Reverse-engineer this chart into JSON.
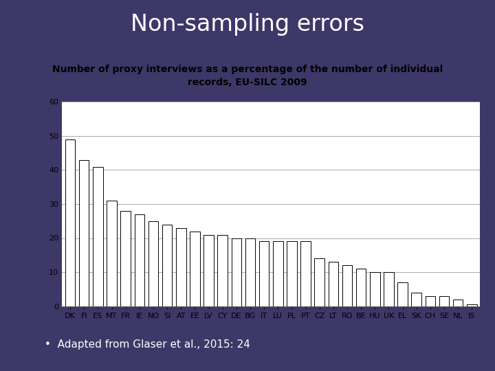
{
  "title": "Non-sampling errors",
  "subtitle": "Number of proxy interviews as a percentage of the number of individual\nrecords, EU-SILC 2009",
  "categories": [
    "DK",
    "FI",
    "ES",
    "MT",
    "FR",
    "IE",
    "NO",
    "SI",
    "AT",
    "EE",
    "LV",
    "CY",
    "DE",
    "BG",
    "IT",
    "LU",
    "PL",
    "PT",
    "CZ",
    "LT",
    "RO",
    "BE",
    "HU",
    "UK",
    "EL",
    "SK",
    "CH",
    "SE",
    "NL",
    "IS"
  ],
  "values": [
    49,
    43,
    41,
    31,
    28,
    27,
    25,
    24,
    23,
    22,
    21,
    21,
    20,
    20,
    19,
    19,
    19,
    19,
    14,
    13,
    12,
    11,
    10,
    10,
    7,
    4,
    3,
    3,
    2,
    0.5
  ],
  "bar_color": "#ffffff",
  "bar_edgecolor": "#000000",
  "bg_color": "#3d3868",
  "title_text_color": "#ffffff",
  "subtitle_text_color": "#000000",
  "grid_color": "#aaaaaa",
  "ylim": [
    0,
    60
  ],
  "yticks": [
    0,
    10,
    20,
    30,
    40,
    50,
    60
  ],
  "chart_bg_color": "#ffffff",
  "footer_text": "Adapted from Glaser et al., 2015: 24",
  "title_fontsize": 24,
  "subtitle_fontsize": 10,
  "tick_fontsize": 8,
  "footer_fontsize": 11
}
